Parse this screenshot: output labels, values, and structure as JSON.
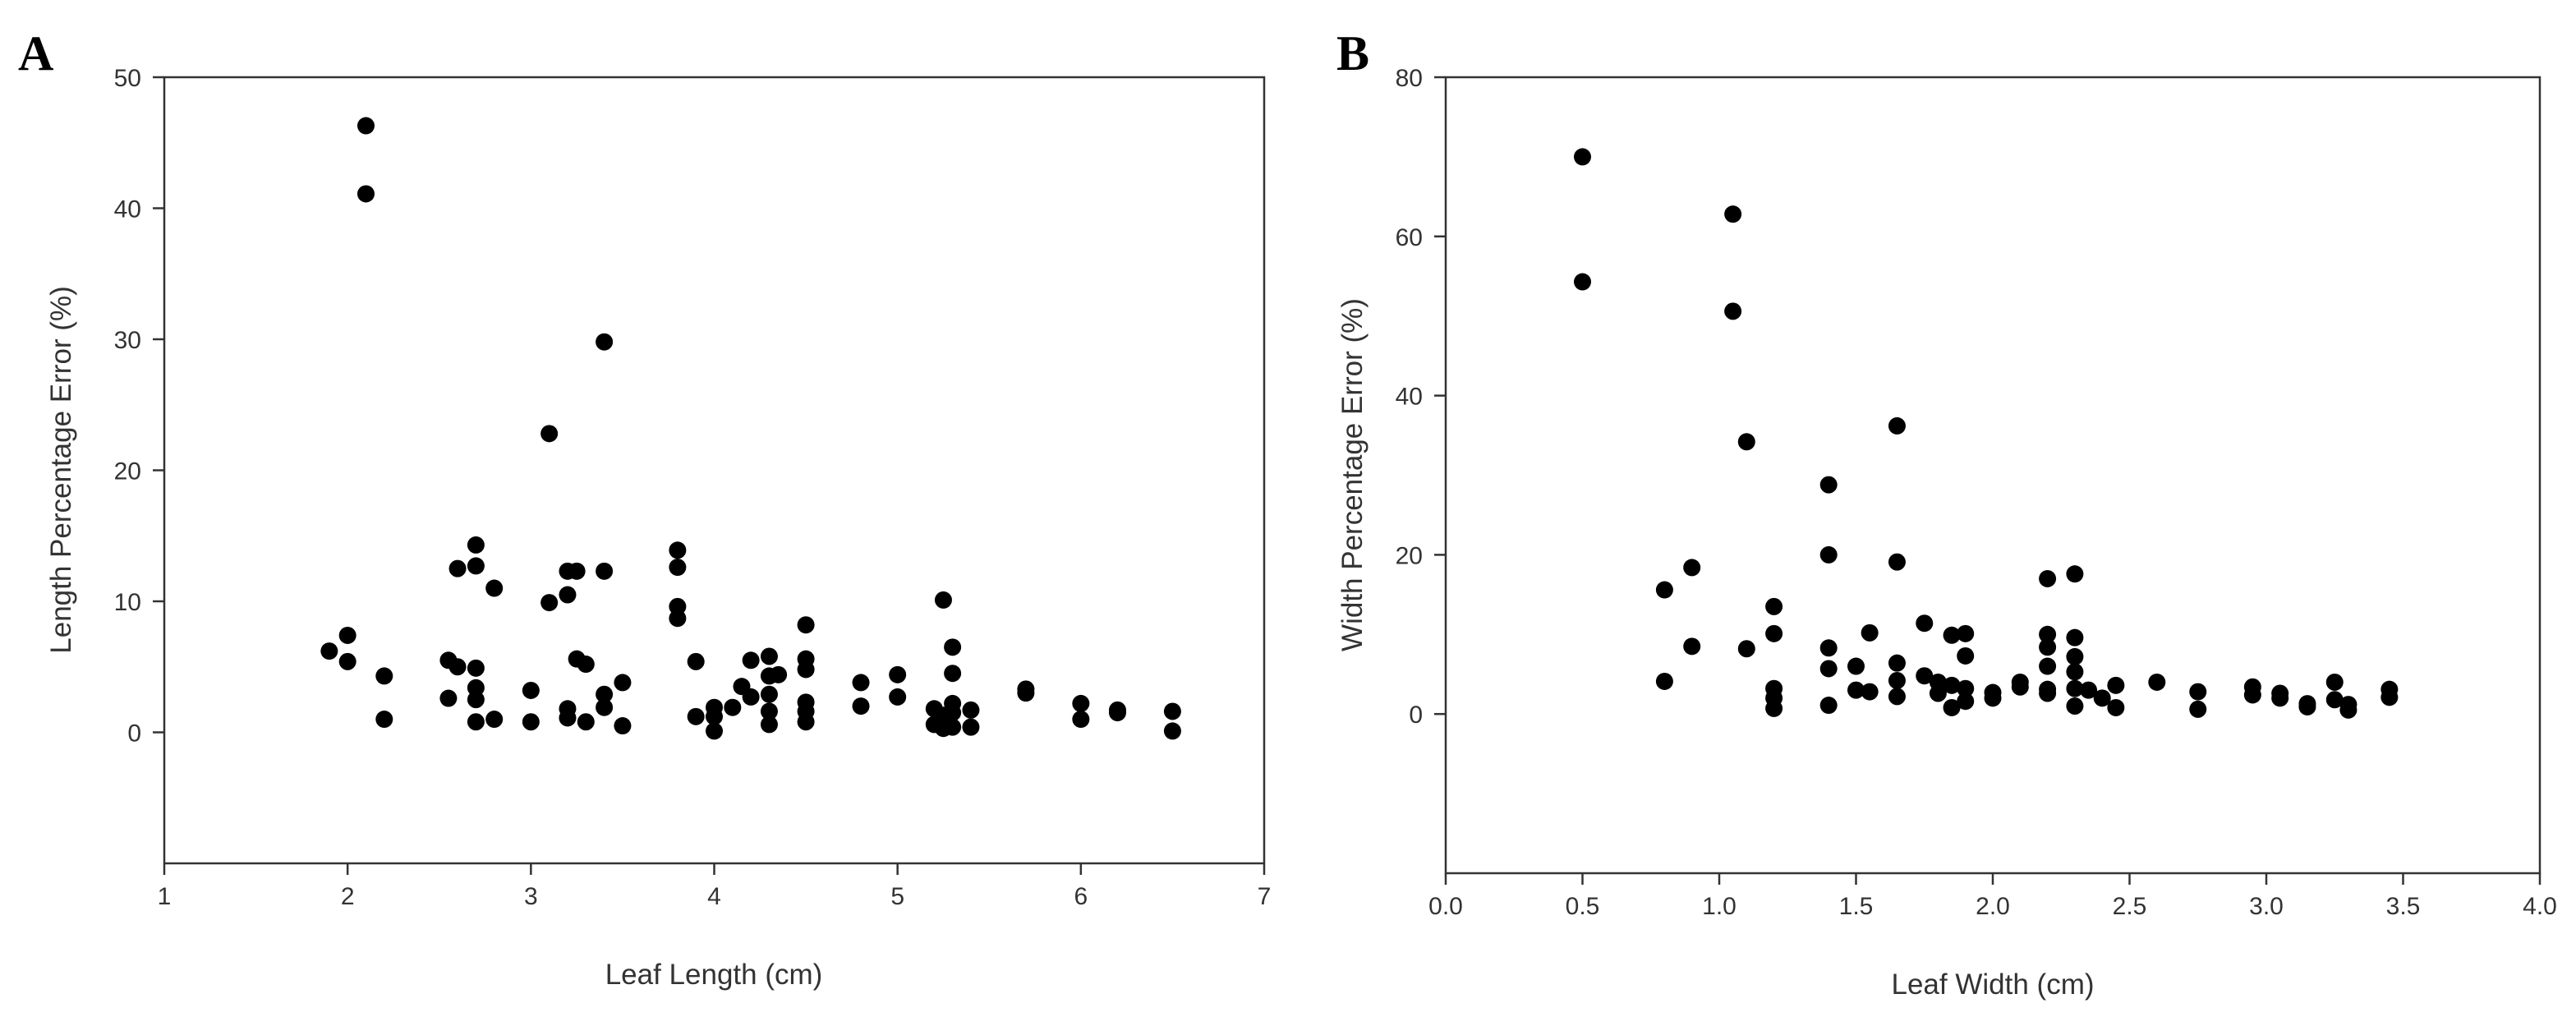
{
  "chart_data": [
    {
      "type": "scatter",
      "panel_label": "A",
      "title": "",
      "xlabel": "Leaf Length (cm)",
      "ylabel": "Length Percentage Error (%)",
      "xlim": [
        1,
        7
      ],
      "ylim": [
        -10,
        50
      ],
      "xticks": [
        1,
        2,
        3,
        4,
        5,
        6,
        7
      ],
      "yticks": [
        0,
        10,
        20,
        30,
        40,
        50
      ],
      "xtick_labels": [
        "1",
        "2",
        "3",
        "4",
        "5",
        "6",
        "7"
      ],
      "ytick_labels": [
        "0",
        "10",
        "20",
        "30",
        "40",
        "50"
      ],
      "grid": false,
      "marker_color": "#000000",
      "points": [
        [
          1.9,
          6.2
        ],
        [
          2.0,
          7.4
        ],
        [
          2.0,
          5.4
        ],
        [
          2.1,
          46.3
        ],
        [
          2.1,
          41.1
        ],
        [
          2.2,
          4.3
        ],
        [
          2.2,
          1.0
        ],
        [
          2.55,
          5.5
        ],
        [
          2.55,
          2.6
        ],
        [
          2.6,
          12.5
        ],
        [
          2.6,
          5.0
        ],
        [
          2.7,
          14.3
        ],
        [
          2.7,
          12.7
        ],
        [
          2.7,
          4.9
        ],
        [
          2.7,
          3.4
        ],
        [
          2.7,
          2.5
        ],
        [
          2.7,
          0.8
        ],
        [
          2.8,
          11.0
        ],
        [
          2.8,
          1.0
        ],
        [
          3.0,
          3.2
        ],
        [
          3.0,
          0.8
        ],
        [
          3.1,
          22.8
        ],
        [
          3.1,
          9.9
        ],
        [
          3.2,
          10.5
        ],
        [
          3.2,
          12.3
        ],
        [
          3.2,
          1.8
        ],
        [
          3.2,
          1.1
        ],
        [
          3.25,
          12.3
        ],
        [
          3.25,
          5.6
        ],
        [
          3.3,
          5.2
        ],
        [
          3.3,
          0.8
        ],
        [
          3.4,
          29.8
        ],
        [
          3.4,
          12.3
        ],
        [
          3.4,
          2.9
        ],
        [
          3.4,
          1.9
        ],
        [
          3.5,
          3.8
        ],
        [
          3.5,
          0.5
        ],
        [
          3.8,
          13.9
        ],
        [
          3.8,
          12.6
        ],
        [
          3.8,
          9.6
        ],
        [
          3.8,
          8.7
        ],
        [
          3.9,
          5.4
        ],
        [
          3.9,
          1.2
        ],
        [
          4.0,
          1.9
        ],
        [
          4.0,
          1.2
        ],
        [
          4.0,
          0.1
        ],
        [
          4.1,
          1.9
        ],
        [
          4.15,
          3.5
        ],
        [
          4.2,
          5.5
        ],
        [
          4.2,
          2.7
        ],
        [
          4.3,
          5.8
        ],
        [
          4.3,
          4.3
        ],
        [
          4.3,
          2.9
        ],
        [
          4.3,
          1.6
        ],
        [
          4.3,
          0.6
        ],
        [
          4.35,
          4.4
        ],
        [
          4.5,
          8.2
        ],
        [
          4.5,
          5.6
        ],
        [
          4.5,
          4.8
        ],
        [
          4.5,
          2.3
        ],
        [
          4.5,
          1.6
        ],
        [
          4.5,
          0.8
        ],
        [
          4.8,
          3.8
        ],
        [
          4.8,
          2.0
        ],
        [
          5.0,
          4.4
        ],
        [
          5.0,
          2.7
        ],
        [
          5.2,
          1.8
        ],
        [
          5.2,
          0.6
        ],
        [
          5.25,
          10.1
        ],
        [
          5.25,
          1.3
        ],
        [
          5.25,
          0.3
        ],
        [
          5.3,
          6.5
        ],
        [
          5.3,
          4.5
        ],
        [
          5.3,
          2.2
        ],
        [
          5.3,
          1.5
        ],
        [
          5.3,
          0.4
        ],
        [
          5.4,
          1.7
        ],
        [
          5.4,
          0.4
        ],
        [
          5.7,
          3.3
        ],
        [
          5.7,
          3.0
        ],
        [
          6.0,
          2.2
        ],
        [
          6.0,
          1.0
        ],
        [
          6.2,
          1.7
        ],
        [
          6.2,
          1.5
        ],
        [
          6.5,
          1.6
        ],
        [
          6.5,
          0.1
        ]
      ]
    },
    {
      "type": "scatter",
      "panel_label": "B",
      "title": "",
      "xlabel": "Leaf Width (cm)",
      "ylabel": "Width Percentage Error (%)",
      "xlim": [
        0.0,
        4.0
      ],
      "ylim": [
        -20,
        80
      ],
      "xticks": [
        0.0,
        0.5,
        1.0,
        1.5,
        2.0,
        2.5,
        3.0,
        3.5,
        4.0
      ],
      "yticks": [
        0,
        20,
        40,
        60,
        80
      ],
      "xtick_labels": [
        "0.0",
        "0.5",
        "1.0",
        "1.5",
        "2.0",
        "2.5",
        "3.0",
        "3.5",
        "4.0"
      ],
      "ytick_labels": [
        "0",
        "20",
        "40",
        "60",
        "80"
      ],
      "grid": false,
      "marker_color": "#000000",
      "points": [
        [
          0.5,
          70.0
        ],
        [
          0.5,
          54.3
        ],
        [
          0.8,
          15.6
        ],
        [
          0.8,
          4.1
        ],
        [
          0.9,
          18.4
        ],
        [
          0.9,
          8.5
        ],
        [
          1.05,
          62.8
        ],
        [
          1.05,
          50.6
        ],
        [
          1.1,
          34.2
        ],
        [
          1.1,
          8.2
        ],
        [
          1.2,
          13.5
        ],
        [
          1.2,
          10.1
        ],
        [
          1.2,
          3.2
        ],
        [
          1.2,
          2.0
        ],
        [
          1.2,
          0.7
        ],
        [
          1.4,
          28.8
        ],
        [
          1.4,
          20.0
        ],
        [
          1.4,
          8.3
        ],
        [
          1.4,
          5.7
        ],
        [
          1.4,
          1.1
        ],
        [
          1.5,
          6.0
        ],
        [
          1.5,
          3.0
        ],
        [
          1.55,
          10.2
        ],
        [
          1.55,
          2.8
        ],
        [
          1.65,
          36.2
        ],
        [
          1.65,
          19.1
        ],
        [
          1.65,
          6.4
        ],
        [
          1.65,
          4.2
        ],
        [
          1.65,
          2.2
        ],
        [
          1.75,
          11.4
        ],
        [
          1.75,
          4.8
        ],
        [
          1.8,
          4.0
        ],
        [
          1.8,
          2.6
        ],
        [
          1.85,
          9.9
        ],
        [
          1.85,
          3.6
        ],
        [
          1.85,
          0.8
        ],
        [
          1.9,
          10.1
        ],
        [
          1.9,
          7.3
        ],
        [
          1.9,
          3.2
        ],
        [
          1.9,
          1.6
        ],
        [
          2.0,
          2.7
        ],
        [
          2.0,
          2.0
        ],
        [
          2.1,
          4.0
        ],
        [
          2.1,
          3.4
        ],
        [
          2.2,
          17.0
        ],
        [
          2.2,
          10.0
        ],
        [
          2.2,
          8.4
        ],
        [
          2.2,
          6.0
        ],
        [
          2.2,
          3.1
        ],
        [
          2.2,
          2.6
        ],
        [
          2.3,
          17.6
        ],
        [
          2.3,
          9.6
        ],
        [
          2.3,
          7.2
        ],
        [
          2.3,
          5.3
        ],
        [
          2.3,
          3.2
        ],
        [
          2.3,
          1.0
        ],
        [
          2.35,
          3.0
        ],
        [
          2.4,
          2.0
        ],
        [
          2.45,
          3.6
        ],
        [
          2.45,
          0.8
        ],
        [
          2.6,
          4.0
        ],
        [
          2.75,
          2.8
        ],
        [
          2.75,
          0.6
        ],
        [
          2.95,
          3.4
        ],
        [
          2.95,
          2.4
        ],
        [
          3.05,
          2.6
        ],
        [
          3.05,
          2.0
        ],
        [
          3.15,
          1.3
        ],
        [
          3.15,
          0.9
        ],
        [
          3.25,
          4.0
        ],
        [
          3.25,
          1.8
        ],
        [
          3.3,
          1.2
        ],
        [
          3.3,
          0.5
        ],
        [
          3.45,
          3.1
        ],
        [
          3.45,
          2.1
        ]
      ]
    }
  ]
}
